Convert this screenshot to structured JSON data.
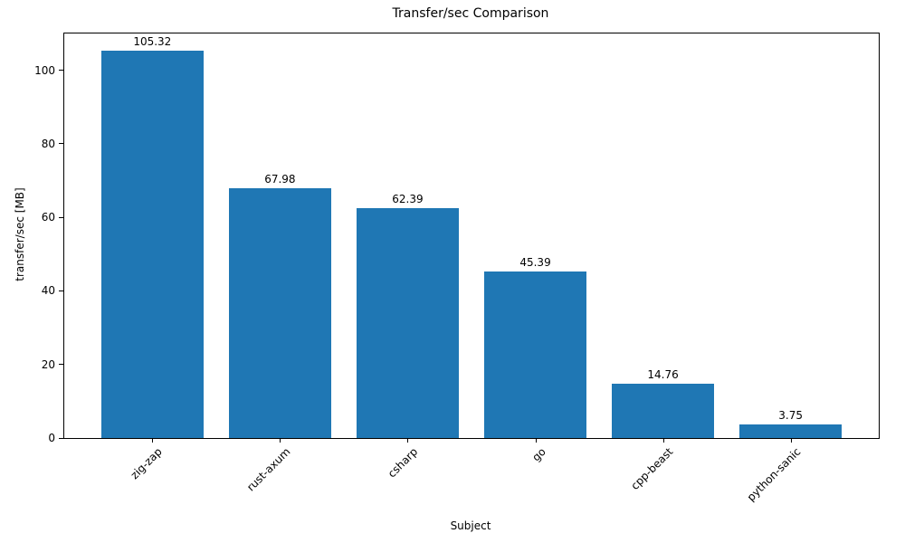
{
  "chart_data": {
    "type": "bar",
    "title": "Transfer/sec Comparison",
    "xlabel": "Subject",
    "ylabel": "transfer/sec [MB]",
    "categories": [
      "zig-zap",
      "rust-axum",
      "csharp",
      "go",
      "cpp-beast",
      "python-sanic"
    ],
    "values": [
      105.32,
      67.98,
      62.39,
      45.39,
      14.76,
      3.75
    ],
    "bar_labels": [
      "105.32",
      "67.98",
      "62.39",
      "45.39",
      "14.76",
      "3.75"
    ],
    "bar_color": "#1f77b4",
    "ylim": [
      0,
      110
    ],
    "yticks": [
      0,
      20,
      40,
      60,
      80,
      100
    ],
    "grid": false,
    "legend_position": "none"
  }
}
